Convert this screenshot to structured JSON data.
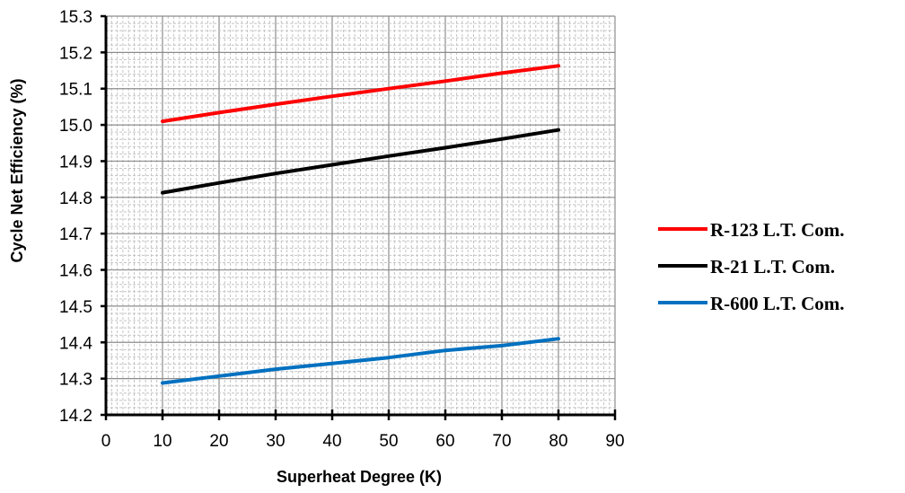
{
  "chart_data": {
    "type": "line",
    "xlabel": "Superheat Degree (K)",
    "ylabel": "Cycle Net Efficiency (%)",
    "xlim": [
      0,
      90
    ],
    "ylim": [
      14.2,
      15.3
    ],
    "x_ticks": [
      "0",
      "10",
      "20",
      "30",
      "40",
      "50",
      "60",
      "70",
      "80",
      "90"
    ],
    "y_ticks": [
      "14.2",
      "14.3",
      "14.4",
      "14.5",
      "14.6",
      "14.7",
      "14.8",
      "14.9",
      "15.0",
      "15.1",
      "15.2",
      "15.3"
    ],
    "grid": true,
    "legend_position": "right",
    "x": [
      10,
      20,
      30,
      40,
      50,
      60,
      70,
      80
    ],
    "series": [
      {
        "name": "R-123 L.T. Com.",
        "color": "#ff0000",
        "values": [
          15.01,
          15.034,
          15.057,
          15.079,
          15.1,
          15.121,
          15.143,
          15.163
        ]
      },
      {
        "name": "R-21 L.T. Com.",
        "color": "#000000",
        "values": [
          14.813,
          14.84,
          14.866,
          14.89,
          14.914,
          14.937,
          14.961,
          14.986
        ]
      },
      {
        "name": "R-600 L.T. Com.",
        "color": "#0070c0",
        "values": [
          14.288,
          14.307,
          14.326,
          14.342,
          14.358,
          14.378,
          14.391,
          14.41
        ]
      }
    ]
  }
}
